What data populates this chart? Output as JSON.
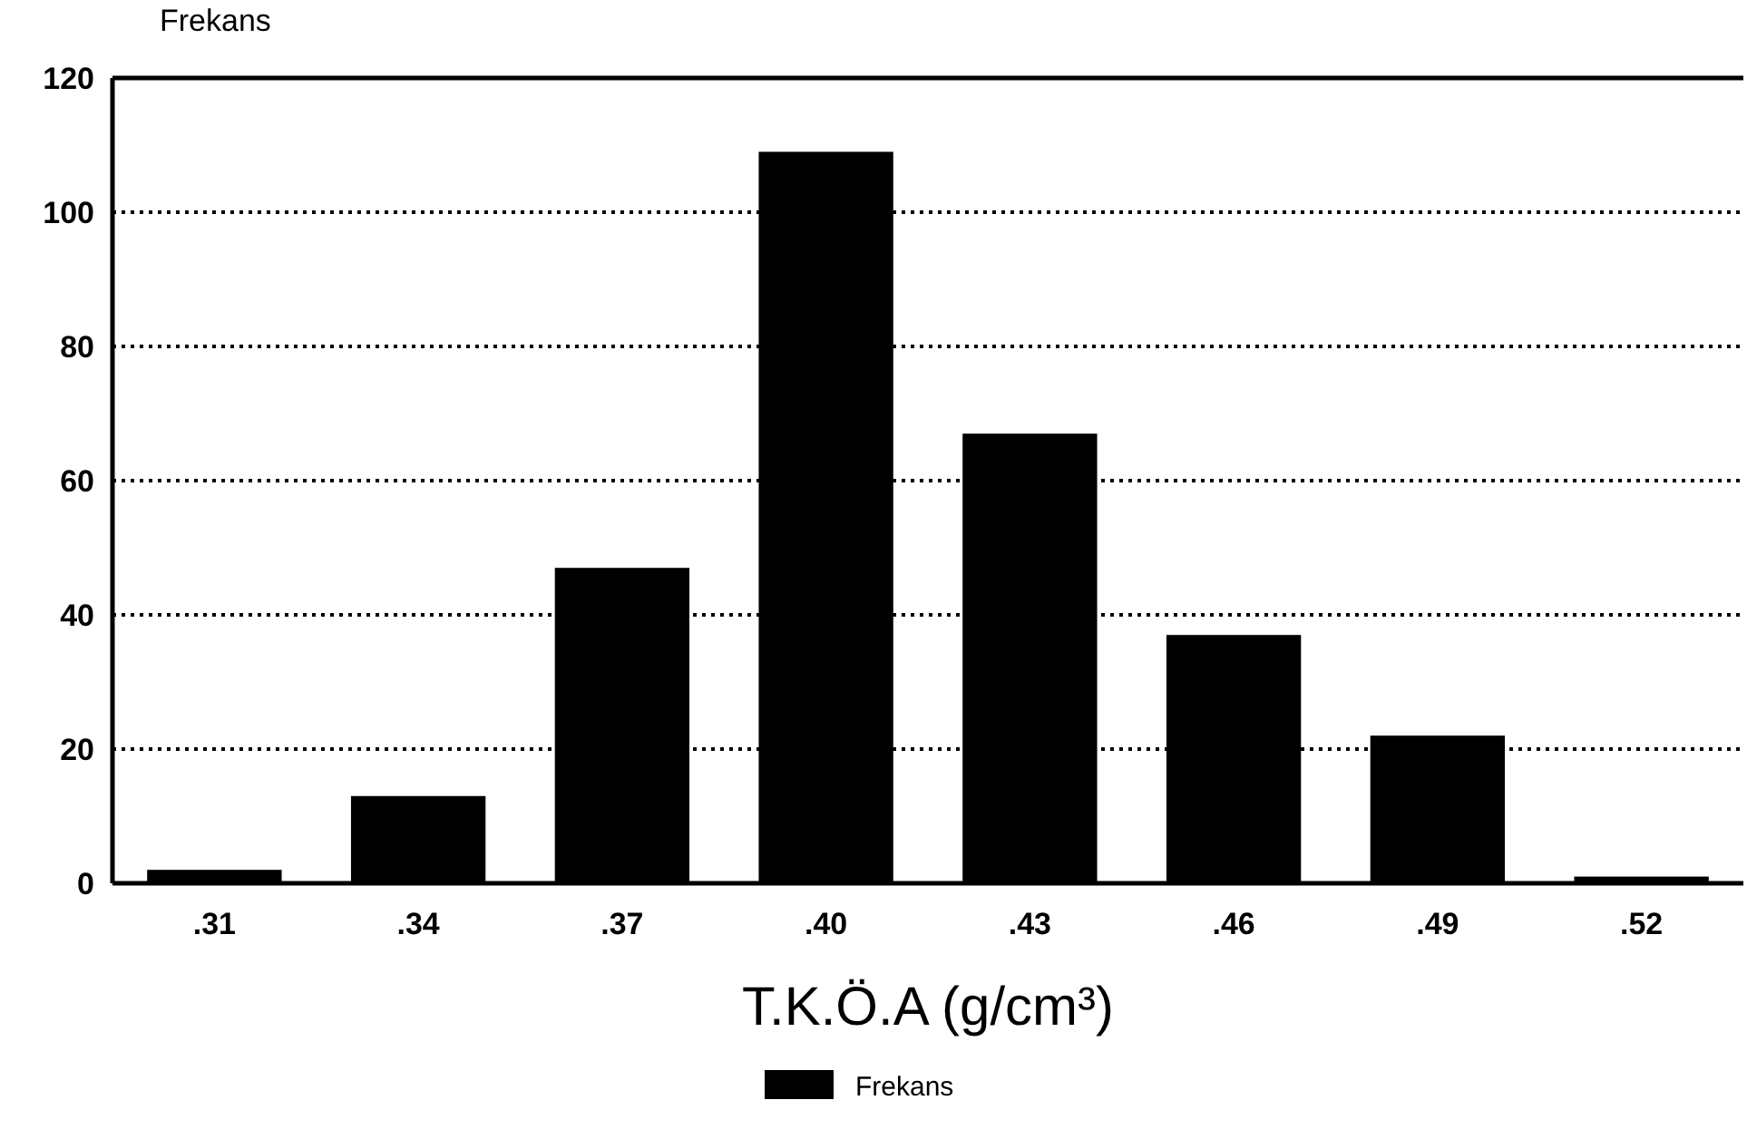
{
  "chart_data": {
    "type": "bar",
    "ylabel": "Frekans",
    "xlabel": "T.K.Ö.A (g/cm³)",
    "categories": [
      ".31",
      ".34",
      ".37",
      ".40",
      ".43",
      ".46",
      ".49",
      ".52"
    ],
    "series": [
      {
        "name": "Frekans",
        "color": "#000000",
        "values": [
          2,
          13,
          47,
          109,
          67,
          37,
          22,
          1
        ]
      }
    ],
    "ylim": [
      0,
      120
    ],
    "yticks": [
      0,
      20,
      40,
      60,
      80,
      100,
      120
    ],
    "grid": "y",
    "legend": "bottom"
  }
}
